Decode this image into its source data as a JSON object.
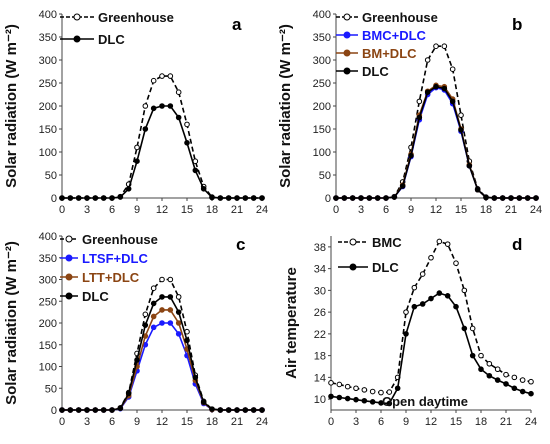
{
  "chart_data": [
    {
      "type": "line",
      "panel_label": "a",
      "ylabel": "Solar radiation (W m⁻²)",
      "xlim": [
        0,
        24
      ],
      "ylim": [
        0,
        400
      ],
      "xticks": [
        "0",
        "3",
        "6",
        "9",
        "12",
        "15",
        "18",
        "21",
        "24"
      ],
      "yticks": [
        "0",
        "50",
        "100",
        "150",
        "200",
        "250",
        "300",
        "350",
        "400"
      ],
      "grid": false,
      "legend_position": "top-left",
      "x": [
        0,
        1,
        2,
        3,
        4,
        5,
        6,
        7,
        8,
        9,
        10,
        11,
        12,
        13,
        14,
        15,
        16,
        17,
        18,
        19,
        20,
        21,
        22,
        23,
        24
      ],
      "series": [
        {
          "name": "Greenhouse",
          "color": "#000000",
          "style": "dashed",
          "marker": "open",
          "values": [
            0,
            0,
            0,
            0,
            0,
            0,
            0,
            3,
            30,
            110,
            200,
            255,
            265,
            265,
            230,
            160,
            80,
            25,
            2,
            0,
            0,
            0,
            0,
            0,
            0
          ]
        },
        {
          "name": "DLC",
          "color": "#000000",
          "style": "solid",
          "marker": "filled",
          "values": [
            0,
            0,
            0,
            0,
            0,
            0,
            0,
            2,
            20,
            80,
            150,
            195,
            200,
            200,
            175,
            120,
            60,
            20,
            1,
            0,
            0,
            0,
            0,
            0,
            0
          ]
        }
      ]
    },
    {
      "type": "line",
      "panel_label": "b",
      "ylabel": "Solar radiation (W m⁻²)",
      "xlim": [
        0,
        24
      ],
      "ylim": [
        0,
        400
      ],
      "xticks": [
        "0",
        "3",
        "6",
        "9",
        "12",
        "15",
        "18",
        "21",
        "24"
      ],
      "yticks": [
        "0",
        "50",
        "100",
        "150",
        "200",
        "250",
        "300",
        "350",
        "400"
      ],
      "grid": false,
      "legend_position": "top-left",
      "x": [
        0,
        1,
        2,
        3,
        4,
        5,
        6,
        7,
        8,
        9,
        10,
        11,
        12,
        13,
        14,
        15,
        16,
        17,
        18,
        19,
        20,
        21,
        22,
        23,
        24
      ],
      "series": [
        {
          "name": "Greenhouse",
          "color": "#000000",
          "style": "dashed",
          "marker": "open",
          "values": [
            0,
            0,
            0,
            0,
            0,
            0,
            0,
            3,
            35,
            110,
            210,
            300,
            330,
            330,
            280,
            180,
            80,
            20,
            2,
            0,
            0,
            0,
            0,
            0,
            0
          ]
        },
        {
          "name": "BMC+DLC",
          "color": "#1a1aff",
          "style": "solid",
          "marker": "filled",
          "values": [
            0,
            0,
            0,
            0,
            0,
            0,
            0,
            2,
            25,
            90,
            170,
            225,
            240,
            235,
            205,
            145,
            70,
            18,
            1,
            0,
            0,
            0,
            0,
            0,
            0
          ]
        },
        {
          "name": "BM+DLC",
          "color": "#8b4513",
          "style": "solid",
          "marker": "filled",
          "values": [
            0,
            0,
            0,
            0,
            0,
            0,
            0,
            2,
            28,
            95,
            180,
            232,
            245,
            242,
            215,
            150,
            72,
            18,
            1,
            0,
            0,
            0,
            0,
            0,
            0
          ]
        },
        {
          "name": "DLC",
          "color": "#000000",
          "style": "solid",
          "marker": "filled",
          "values": [
            0,
            0,
            0,
            0,
            0,
            0,
            0,
            2,
            26,
            92,
            175,
            230,
            242,
            238,
            210,
            148,
            70,
            18,
            1,
            0,
            0,
            0,
            0,
            0,
            0
          ]
        }
      ]
    },
    {
      "type": "line",
      "panel_label": "c",
      "ylabel": "Solar radiation (W m⁻²)",
      "xlim": [
        0,
        24
      ],
      "ylim": [
        0,
        400
      ],
      "xticks": [
        "0",
        "3",
        "6",
        "9",
        "12",
        "15",
        "18",
        "21",
        "24"
      ],
      "yticks": [
        "0",
        "50",
        "100",
        "150",
        "200",
        "250",
        "300",
        "350",
        "400"
      ],
      "grid": false,
      "legend_position": "top-left",
      "x": [
        0,
        1,
        2,
        3,
        4,
        5,
        6,
        7,
        8,
        9,
        10,
        11,
        12,
        13,
        14,
        15,
        16,
        17,
        18,
        19,
        20,
        21,
        22,
        23,
        24
      ],
      "series": [
        {
          "name": "Greenhouse",
          "color": "#000000",
          "style": "dashed",
          "marker": "open",
          "values": [
            0,
            0,
            0,
            0,
            0,
            0,
            0,
            5,
            40,
            130,
            220,
            280,
            300,
            300,
            260,
            180,
            80,
            20,
            2,
            0,
            0,
            0,
            0,
            0,
            0
          ]
        },
        {
          "name": "LTSF+DLC",
          "color": "#1a1aff",
          "style": "solid",
          "marker": "filled",
          "values": [
            0,
            0,
            0,
            0,
            0,
            0,
            0,
            3,
            30,
            90,
            150,
            190,
            200,
            200,
            175,
            125,
            60,
            15,
            1,
            0,
            0,
            0,
            0,
            0,
            0
          ]
        },
        {
          "name": "LTT+DLC",
          "color": "#8b4513",
          "style": "solid",
          "marker": "filled",
          "values": [
            0,
            0,
            0,
            0,
            0,
            0,
            0,
            4,
            33,
            100,
            170,
            215,
            230,
            230,
            200,
            140,
            68,
            17,
            1,
            0,
            0,
            0,
            0,
            0,
            0
          ]
        },
        {
          "name": "DLC",
          "color": "#000000",
          "style": "solid",
          "marker": "filled",
          "values": [
            0,
            0,
            0,
            0,
            0,
            0,
            0,
            4,
            38,
            115,
            195,
            245,
            260,
            260,
            225,
            160,
            75,
            18,
            2,
            0,
            0,
            0,
            0,
            0,
            0
          ]
        }
      ]
    },
    {
      "type": "line",
      "panel_label": "d",
      "ylabel": "Air temperature",
      "annotation": "Open daytime",
      "xlim": [
        0,
        24
      ],
      "ylim": [
        8,
        40
      ],
      "xticks": [
        "0",
        "3",
        "6",
        "9",
        "12",
        "15",
        "18",
        "21",
        "24"
      ],
      "yticks": [
        "10",
        "14",
        "18",
        "22",
        "26",
        "30",
        "34",
        "38"
      ],
      "grid": false,
      "legend_position": "top-left",
      "x": [
        0,
        1,
        2,
        3,
        4,
        5,
        6,
        7,
        8,
        9,
        10,
        11,
        12,
        13,
        14,
        15,
        16,
        17,
        18,
        19,
        20,
        21,
        22,
        23,
        24
      ],
      "series": [
        {
          "name": "BMC",
          "color": "#000000",
          "style": "dashed",
          "marker": "open",
          "values": [
            13,
            12.7,
            12.3,
            12,
            11.7,
            11.4,
            11.2,
            11.3,
            14,
            26,
            30.5,
            33,
            36,
            39,
            38.5,
            35,
            30,
            23,
            18,
            16.5,
            15.5,
            14.5,
            14,
            13.5,
            13.2
          ]
        },
        {
          "name": "DLC",
          "color": "#000000",
          "style": "solid",
          "marker": "filled",
          "values": [
            10.5,
            10.3,
            10.1,
            9.9,
            9.7,
            9.5,
            9.3,
            9.2,
            12,
            22,
            27,
            27.5,
            28.5,
            29.5,
            29,
            27,
            23,
            18,
            15.5,
            14.3,
            13.5,
            12.8,
            12,
            11.4,
            11
          ]
        }
      ]
    }
  ]
}
